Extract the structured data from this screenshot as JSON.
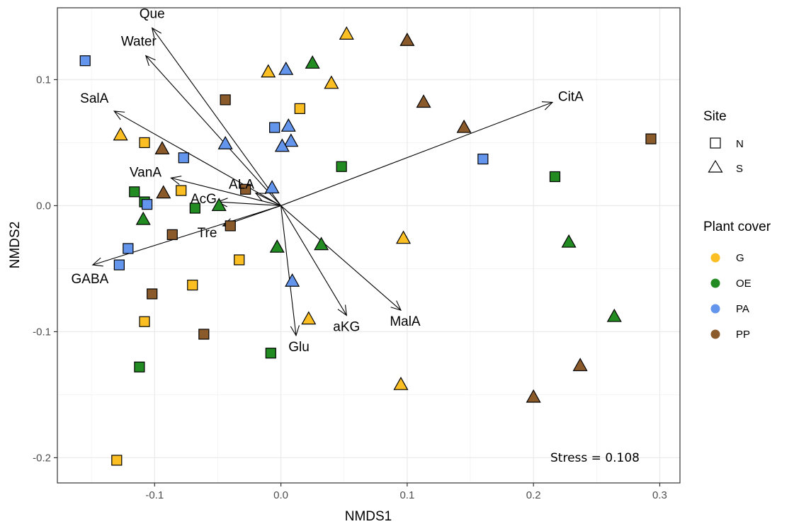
{
  "chart_data": {
    "type": "scatter",
    "xlabel": "NMDS1",
    "ylabel": "NMDS2",
    "xlim": [
      -0.177,
      0.316
    ],
    "ylim": [
      -0.22,
      0.157
    ],
    "x_ticks": [
      -0.1,
      0.0,
      0.1,
      0.2,
      0.3
    ],
    "x_tick_labels": [
      "-0.1",
      "0.0",
      "0.1",
      "0.2",
      "0.3"
    ],
    "y_ticks": [
      -0.2,
      -0.1,
      0.0,
      0.1
    ],
    "y_tick_labels": [
      "-0.2",
      "-0.1",
      "0.0",
      "0.1"
    ],
    "grid": true,
    "annotation": "Stress = 0.108",
    "legend": {
      "placement": "right",
      "site_title": "Site",
      "site_entries": [
        {
          "label": "N",
          "shape": "square"
        },
        {
          "label": "S",
          "shape": "triangle"
        }
      ],
      "cover_title": "Plant cover",
      "cover_entries": [
        {
          "label": "G",
          "color": "#FBBF24"
        },
        {
          "label": "OE",
          "color": "#228B22"
        },
        {
          "label": "PA",
          "color": "#6495ED"
        },
        {
          "label": "PP",
          "color": "#8B5A2B"
        }
      ]
    },
    "colors": {
      "G": "#FBBF24",
      "OE": "#228B22",
      "PA": "#6495ED",
      "PP": "#8B5A2B"
    },
    "vectors": [
      {
        "label": "Que",
        "x": -0.102,
        "y": 0.141
      },
      {
        "label": "Water",
        "x": -0.107,
        "y": 0.119
      },
      {
        "label": "SalA",
        "x": -0.132,
        "y": 0.075
      },
      {
        "label": "CitA",
        "x": 0.215,
        "y": 0.082
      },
      {
        "label": "VanA",
        "x": -0.087,
        "y": 0.022
      },
      {
        "label": "ALA",
        "x": -0.02,
        "y": 0.01
      },
      {
        "label": "AcG",
        "x": -0.05,
        "y": 0.003
      },
      {
        "label": "Tre",
        "x": -0.046,
        "y": -0.016
      },
      {
        "label": "GABA",
        "x": -0.149,
        "y": -0.047
      },
      {
        "label": "Glu",
        "x": 0.012,
        "y": -0.103
      },
      {
        "label": "aKG",
        "x": 0.052,
        "y": -0.087
      },
      {
        "label": "MalA",
        "x": 0.095,
        "y": -0.083
      }
    ],
    "points": [
      {
        "x": -0.155,
        "y": 0.115,
        "site": "N",
        "cover": "PA"
      },
      {
        "x": -0.044,
        "y": 0.084,
        "site": "N",
        "cover": "PP"
      },
      {
        "x": 0.015,
        "y": 0.077,
        "site": "N",
        "cover": "G"
      },
      {
        "x": -0.005,
        "y": 0.062,
        "site": "N",
        "cover": "PA"
      },
      {
        "x": -0.108,
        "y": 0.05,
        "site": "N",
        "cover": "G"
      },
      {
        "x": -0.077,
        "y": 0.038,
        "site": "N",
        "cover": "PA"
      },
      {
        "x": 0.048,
        "y": 0.031,
        "site": "N",
        "cover": "OE"
      },
      {
        "x": 0.16,
        "y": 0.037,
        "site": "N",
        "cover": "PA"
      },
      {
        "x": 0.217,
        "y": 0.023,
        "site": "N",
        "cover": "OE"
      },
      {
        "x": 0.293,
        "y": 0.053,
        "site": "N",
        "cover": "PP"
      },
      {
        "x": -0.116,
        "y": 0.011,
        "site": "N",
        "cover": "OE"
      },
      {
        "x": -0.108,
        "y": 0.003,
        "site": "N",
        "cover": "OE"
      },
      {
        "x": -0.106,
        "y": 0.001,
        "site": "N",
        "cover": "PA"
      },
      {
        "x": -0.079,
        "y": 0.012,
        "site": "N",
        "cover": "G"
      },
      {
        "x": -0.068,
        "y": -0.002,
        "site": "N",
        "cover": "OE"
      },
      {
        "x": -0.028,
        "y": 0.013,
        "site": "N",
        "cover": "PP"
      },
      {
        "x": -0.04,
        "y": -0.016,
        "site": "N",
        "cover": "PP"
      },
      {
        "x": -0.086,
        "y": -0.023,
        "site": "N",
        "cover": "PP"
      },
      {
        "x": -0.121,
        "y": -0.034,
        "site": "N",
        "cover": "PA"
      },
      {
        "x": -0.128,
        "y": -0.047,
        "site": "N",
        "cover": "PA"
      },
      {
        "x": -0.033,
        "y": -0.043,
        "site": "N",
        "cover": "G"
      },
      {
        "x": -0.07,
        "y": -0.063,
        "site": "N",
        "cover": "G"
      },
      {
        "x": -0.102,
        "y": -0.07,
        "site": "N",
        "cover": "PP"
      },
      {
        "x": -0.108,
        "y": -0.092,
        "site": "N",
        "cover": "G"
      },
      {
        "x": -0.061,
        "y": -0.102,
        "site": "N",
        "cover": "PP"
      },
      {
        "x": -0.008,
        "y": -0.117,
        "site": "N",
        "cover": "OE"
      },
      {
        "x": -0.112,
        "y": -0.128,
        "site": "N",
        "cover": "OE"
      },
      {
        "x": -0.13,
        "y": -0.202,
        "site": "N",
        "cover": "G"
      },
      {
        "x": 0.052,
        "y": 0.136,
        "site": "S",
        "cover": "G"
      },
      {
        "x": 0.1,
        "y": 0.131,
        "site": "S",
        "cover": "PP"
      },
      {
        "x": 0.025,
        "y": 0.113,
        "site": "S",
        "cover": "OE"
      },
      {
        "x": 0.004,
        "y": 0.108,
        "site": "S",
        "cover": "PA"
      },
      {
        "x": -0.01,
        "y": 0.106,
        "site": "S",
        "cover": "G"
      },
      {
        "x": 0.04,
        "y": 0.097,
        "site": "S",
        "cover": "G"
      },
      {
        "x": 0.113,
        "y": 0.082,
        "site": "S",
        "cover": "PP"
      },
      {
        "x": 0.145,
        "y": 0.062,
        "site": "S",
        "cover": "PP"
      },
      {
        "x": -0.127,
        "y": 0.056,
        "site": "S",
        "cover": "G"
      },
      {
        "x": -0.094,
        "y": 0.045,
        "site": "S",
        "cover": "PP"
      },
      {
        "x": -0.044,
        "y": 0.049,
        "site": "S",
        "cover": "PA"
      },
      {
        "x": 0.006,
        "y": 0.063,
        "site": "S",
        "cover": "PA"
      },
      {
        "x": 0.008,
        "y": 0.051,
        "site": "S",
        "cover": "PA"
      },
      {
        "x": 0.001,
        "y": 0.047,
        "site": "S",
        "cover": "PA"
      },
      {
        "x": -0.007,
        "y": 0.014,
        "site": "S",
        "cover": "PA"
      },
      {
        "x": -0.093,
        "y": 0.01,
        "site": "S",
        "cover": "PP"
      },
      {
        "x": -0.049,
        "y": 0.0,
        "site": "S",
        "cover": "OE"
      },
      {
        "x": -0.109,
        "y": -0.011,
        "site": "S",
        "cover": "OE"
      },
      {
        "x": -0.003,
        "y": -0.033,
        "site": "S",
        "cover": "OE"
      },
      {
        "x": 0.032,
        "y": -0.031,
        "site": "S",
        "cover": "OE"
      },
      {
        "x": 0.097,
        "y": -0.026,
        "site": "S",
        "cover": "G"
      },
      {
        "x": 0.228,
        "y": -0.029,
        "site": "S",
        "cover": "OE"
      },
      {
        "x": 0.009,
        "y": -0.06,
        "site": "S",
        "cover": "PA"
      },
      {
        "x": 0.022,
        "y": -0.09,
        "site": "S",
        "cover": "G"
      },
      {
        "x": 0.264,
        "y": -0.088,
        "site": "S",
        "cover": "OE"
      },
      {
        "x": 0.237,
        "y": -0.127,
        "site": "S",
        "cover": "PP"
      },
      {
        "x": 0.095,
        "y": -0.142,
        "site": "S",
        "cover": "G"
      },
      {
        "x": 0.2,
        "y": -0.152,
        "site": "S",
        "cover": "PP"
      }
    ]
  }
}
